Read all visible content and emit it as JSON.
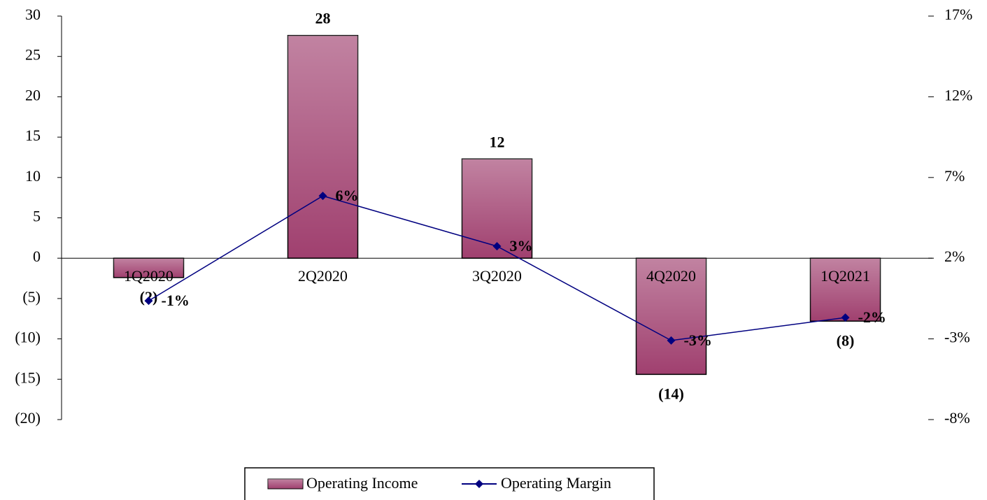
{
  "chart_data": {
    "type": "bar",
    "categories": [
      "1Q2020",
      "2Q2020",
      "3Q2020",
      "4Q2020",
      "1Q2021"
    ],
    "series": [
      {
        "name": "Operating Income",
        "type": "bar",
        "color": "#a0406f",
        "values": [
          -2.4,
          27.6,
          12.3,
          -14.4,
          -7.8
        ],
        "value_labels": [
          "(2)",
          "28",
          "12",
          "(14)",
          "(8)"
        ]
      },
      {
        "name": "Operating Margin",
        "type": "line",
        "axis": "y2",
        "color": "#000080",
        "values": [
          -0.64,
          5.86,
          2.74,
          -3.1,
          -1.68
        ],
        "value_labels": [
          "-1%",
          "6%",
          "3%",
          "-3%",
          "-2%"
        ]
      }
    ],
    "ylim": [
      -20,
      30
    ],
    "yticks": [
      {
        "value": -20,
        "label": "(20)"
      },
      {
        "value": -15,
        "label": "(15)"
      },
      {
        "value": -10,
        "label": "(10)"
      },
      {
        "value": -5,
        "label": "(5)"
      },
      0,
      5,
      10,
      15,
      20,
      25,
      30
    ],
    "y2lim": [
      -8,
      17
    ],
    "y2ticks": [
      {
        "value": -8,
        "label": "-8%"
      },
      {
        "value": -3,
        "label": "-3%"
      },
      {
        "value": 2,
        "label": "2%"
      },
      {
        "value": 7,
        "label": "7%"
      },
      {
        "value": 12,
        "label": "12%"
      },
      {
        "value": 17,
        "label": "17%"
      }
    ],
    "negative_color": "#ff0000",
    "legend": "bottom"
  }
}
